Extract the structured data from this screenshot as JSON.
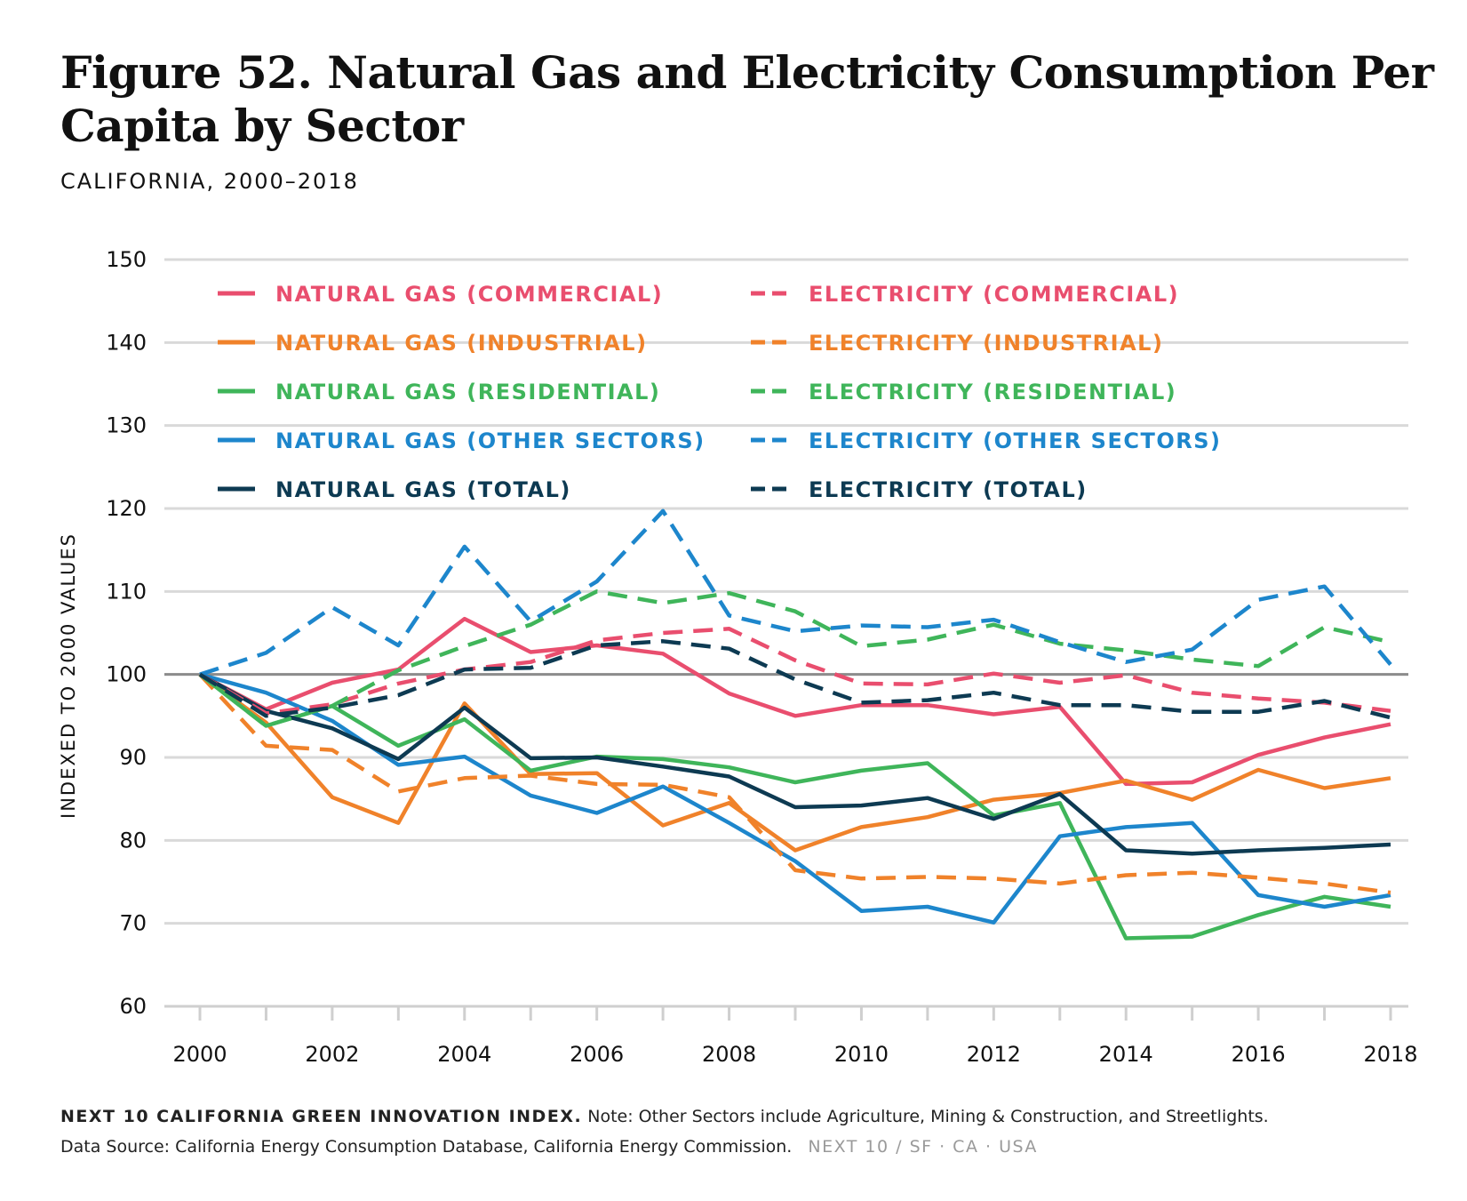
{
  "header": {
    "title": "Figure 52. Natural Gas and Electricity Consumption Per Capita by Sector",
    "subtitle": "CALIFORNIA, 2000–2018"
  },
  "footer": {
    "lead": "NEXT 10 CALIFORNIA GREEN INNOVATION INDEX.",
    "note": "Note: Other Sectors include Agriculture, Mining & Construction, and Streetlights.",
    "source": "Data Source: California Energy Consumption Database, California Energy Commission.",
    "brand": "NEXT 10  /  SF · CA · USA"
  },
  "chart_data": {
    "type": "line",
    "title": "Figure 52. Natural Gas and Electricity Consumption Per Capita by Sector",
    "subtitle": "CALIFORNIA, 2000–2018",
    "xlabel": "",
    "ylabel": "INDEXED TO 2000 VALUES",
    "xlim": [
      2000,
      2018
    ],
    "ylim": [
      60,
      150
    ],
    "xticks": [
      2000,
      2002,
      2004,
      2006,
      2008,
      2010,
      2012,
      2014,
      2016,
      2018
    ],
    "yticks": [
      60,
      70,
      80,
      90,
      100,
      110,
      120,
      130,
      140,
      150
    ],
    "grid": true,
    "reference_line": 100,
    "legend_position": "top-left, two columns",
    "x": [
      2000,
      2001,
      2002,
      2003,
      2004,
      2005,
      2006,
      2007,
      2008,
      2009,
      2010,
      2011,
      2012,
      2013,
      2014,
      2015,
      2016,
      2017,
      2018
    ],
    "series": [
      {
        "name": "NATURAL GAS (COMMERCIAL)",
        "color": "#E94E6E",
        "dash": "solid",
        "values": [
          100,
          95.8,
          99,
          100.6,
          106.7,
          102.7,
          103.5,
          102.5,
          97.7,
          95,
          96.3,
          96.3,
          95.2,
          96.1,
          86.8,
          87,
          90.3,
          92.4,
          94
        ]
      },
      {
        "name": "NATURAL GAS (INDUSTRIAL)",
        "color": "#F0822A",
        "dash": "solid",
        "values": [
          100,
          94.2,
          85.2,
          82.1,
          96.5,
          88,
          88.1,
          81.8,
          84.5,
          78.8,
          81.6,
          82.8,
          84.9,
          85.7,
          87.2,
          84.9,
          88.5,
          86.3,
          87.5
        ]
      },
      {
        "name": "NATURAL GAS (RESIDENTIAL)",
        "color": "#3FB55A",
        "dash": "solid",
        "values": [
          100,
          93.8,
          96.2,
          91.4,
          94.6,
          88.4,
          90.1,
          89.8,
          88.8,
          87,
          88.4,
          89.3,
          83,
          84.5,
          68.2,
          68.4,
          71,
          73.2,
          72
        ]
      },
      {
        "name": "NATURAL GAS (OTHER SECTORS)",
        "color": "#1D86CC",
        "dash": "solid",
        "values": [
          100,
          97.8,
          94.4,
          89.1,
          90.1,
          85.4,
          83.3,
          86.5,
          82.1,
          77.5,
          71.5,
          72,
          70.1,
          80.5,
          81.6,
          82.1,
          73.4,
          72,
          73.4
        ]
      },
      {
        "name": "NATURAL GAS (TOTAL)",
        "color": "#0D3A52",
        "dash": "solid",
        "values": [
          100,
          95.6,
          93.5,
          89.8,
          96,
          89.9,
          90,
          88.9,
          87.7,
          84,
          84.2,
          85.1,
          82.6,
          85.6,
          78.8,
          78.4,
          78.8,
          79.1,
          79.5
        ]
      },
      {
        "name": "ELECTRICITY (COMMERCIAL)",
        "color": "#E94E6E",
        "dash": "dashed",
        "values": [
          100,
          95.3,
          96.4,
          98.9,
          100.6,
          101.5,
          104.1,
          105,
          105.5,
          101.7,
          98.9,
          98.8,
          100.1,
          99,
          99.9,
          97.8,
          97.1,
          96.6,
          95.6
        ]
      },
      {
        "name": "ELECTRICITY (INDUSTRIAL)",
        "color": "#F0822A",
        "dash": "dashed",
        "values": [
          100,
          91.4,
          90.9,
          85.9,
          87.5,
          87.8,
          86.8,
          86.7,
          85.2,
          76.4,
          75.4,
          75.6,
          75.4,
          74.8,
          75.8,
          76.1,
          75.5,
          74.8,
          73.7
        ]
      },
      {
        "name": "ELECTRICITY (RESIDENTIAL)",
        "color": "#3FB55A",
        "dash": "dashed",
        "values": [
          100,
          93.8,
          96.2,
          100.5,
          103.4,
          106,
          110,
          108.6,
          109.8,
          107.6,
          103.4,
          104.2,
          106,
          103.7,
          102.9,
          101.8,
          101,
          105.7,
          103.9
        ]
      },
      {
        "name": "ELECTRICITY (OTHER SECTORS)",
        "color": "#1D86CC",
        "dash": "dashed",
        "values": [
          100,
          102.6,
          108.1,
          103.5,
          115.4,
          106.4,
          111.2,
          119.7,
          107.1,
          105.2,
          105.9,
          105.7,
          106.6,
          103.9,
          101.5,
          103,
          109,
          110.6,
          101.2
        ]
      },
      {
        "name": "ELECTRICITY (TOTAL)",
        "color": "#0D3A52",
        "dash": "dashed",
        "values": [
          100,
          95,
          96,
          97.5,
          100.6,
          100.8,
          103.5,
          104,
          103.1,
          99.4,
          96.6,
          96.9,
          97.8,
          96.3,
          96.3,
          95.5,
          95.5,
          96.8,
          94.8
        ]
      }
    ]
  }
}
